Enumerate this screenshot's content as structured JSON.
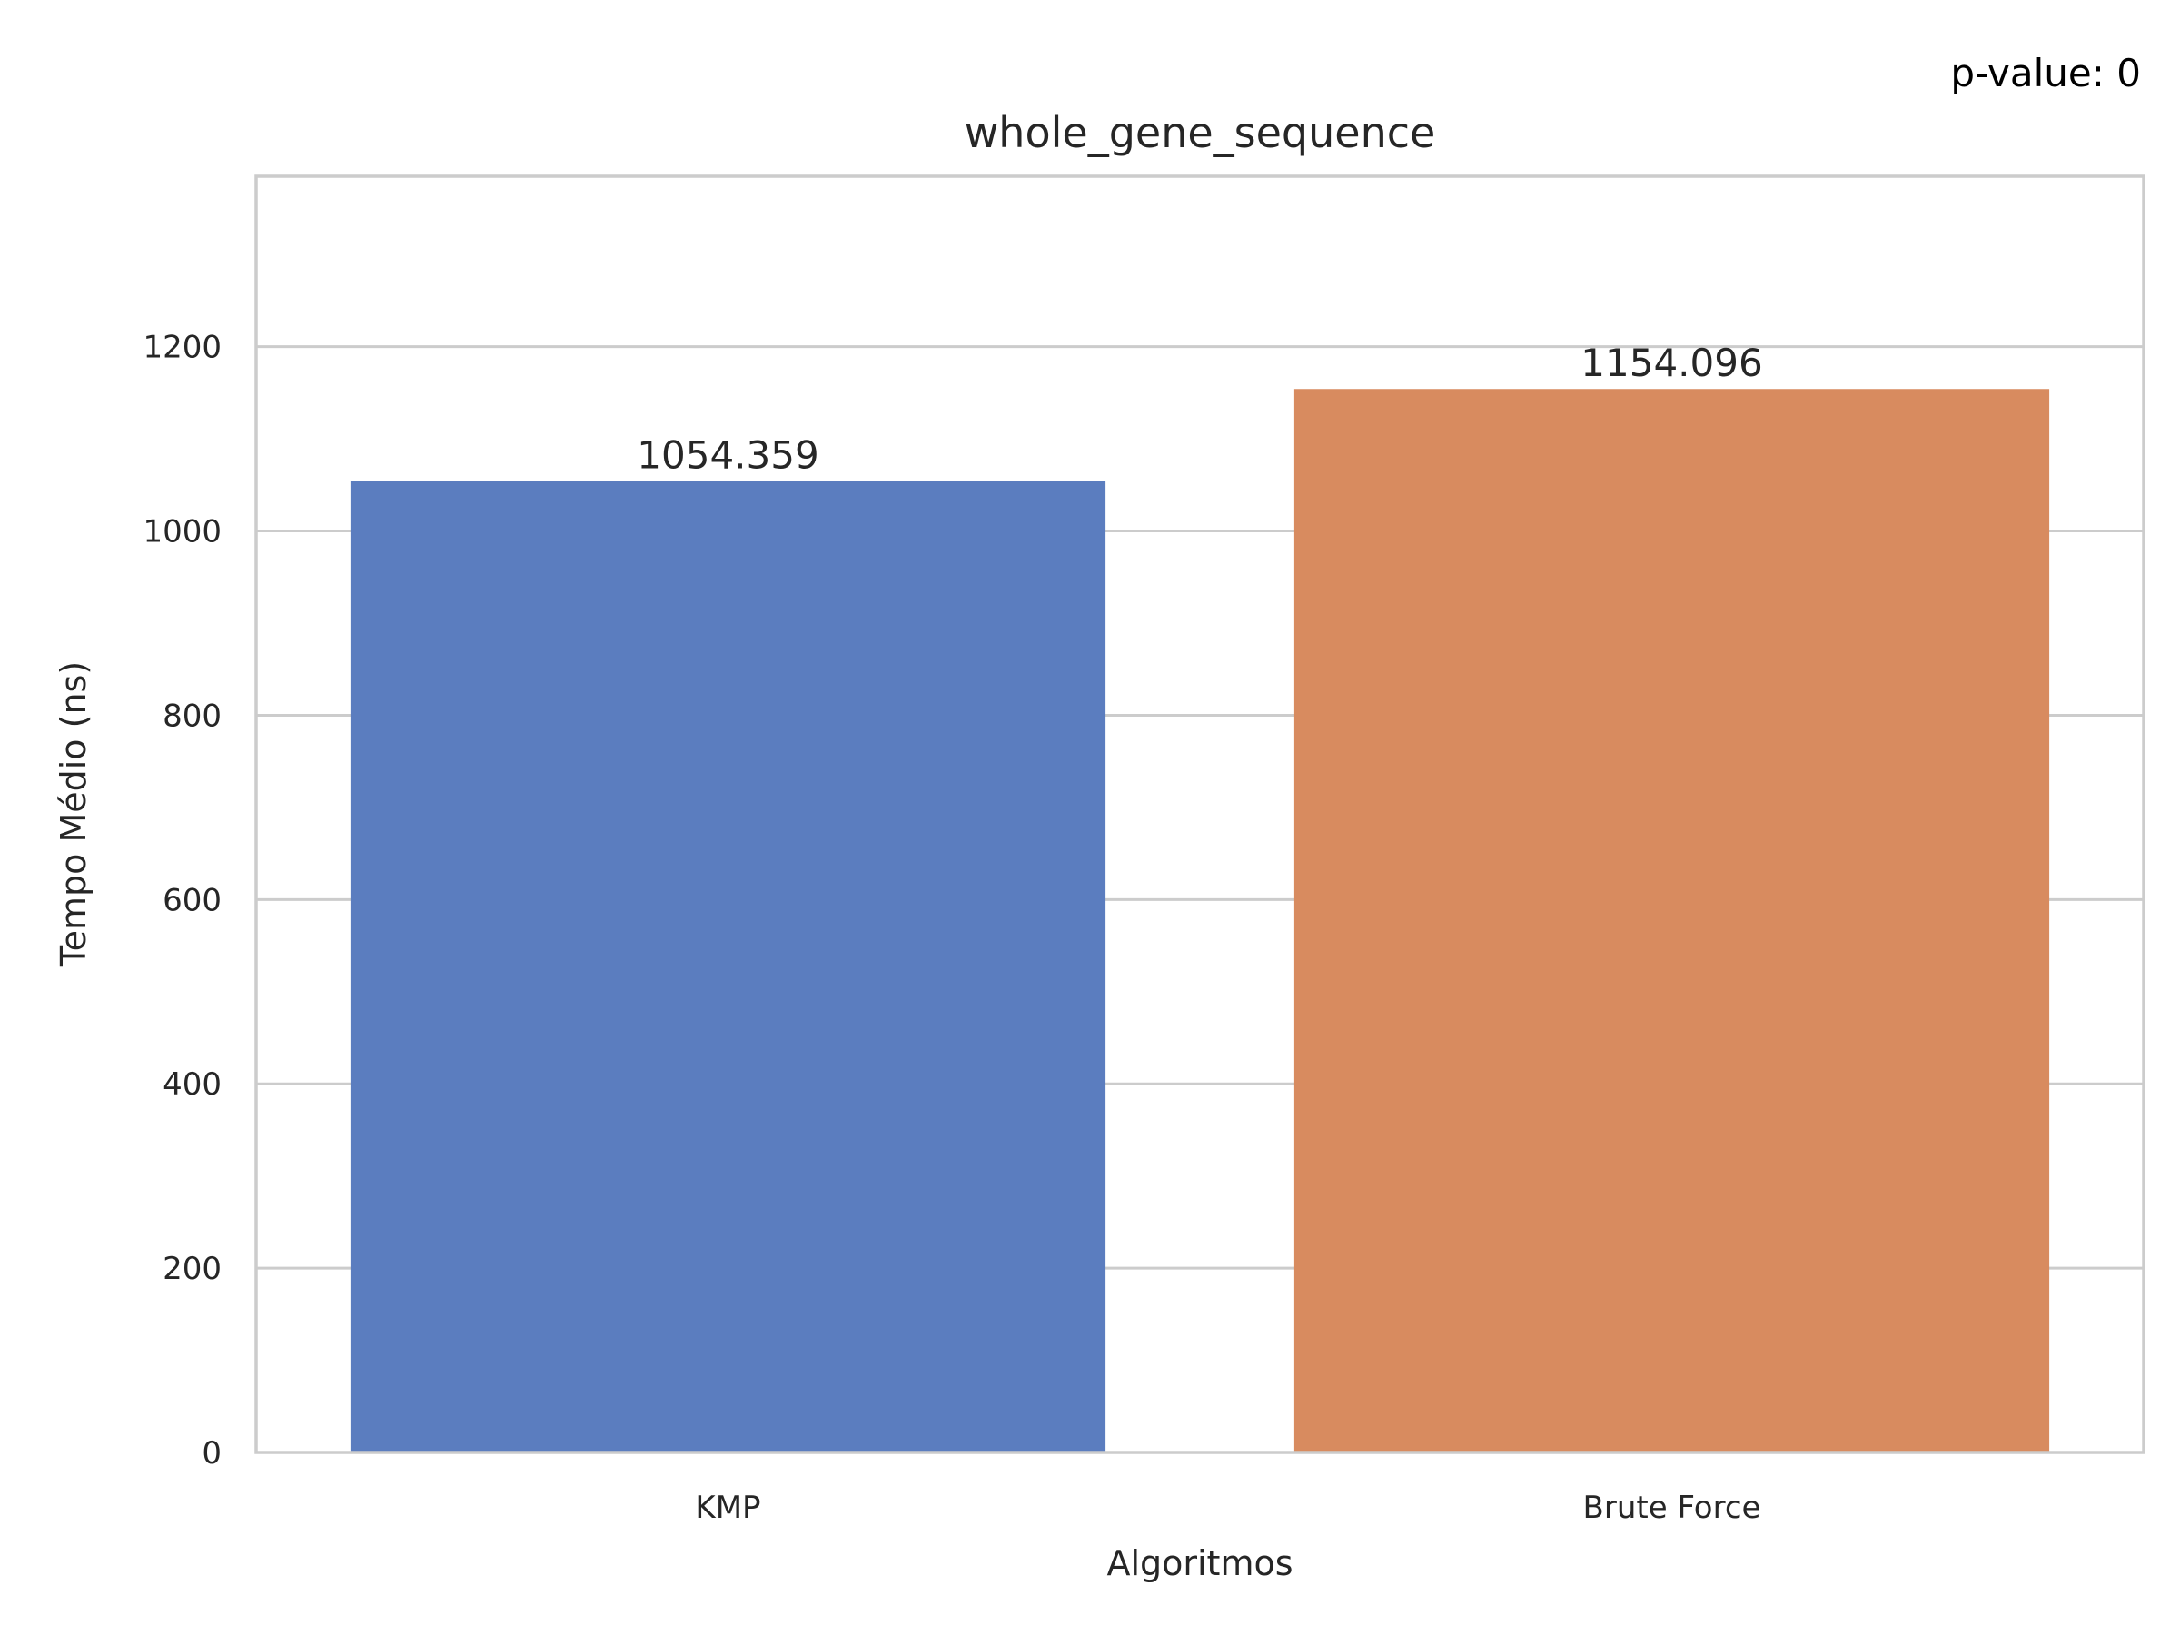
{
  "chart_data": {
    "type": "bar",
    "title": "whole_gene_sequence",
    "annotation": "p-value: 0",
    "xlabel": "Algoritmos",
    "ylabel": "Tempo Médio (ns)",
    "categories": [
      "KMP",
      "Brute Force"
    ],
    "values": [
      1054.359,
      1154.096
    ],
    "value_labels": [
      "1054.359",
      "1154.096"
    ],
    "bar_colors": [
      "#5b7dbf",
      "#d88b5f"
    ],
    "ylim": [
      0,
      1385
    ],
    "yticks": [
      0,
      200,
      400,
      600,
      800,
      1000,
      1200
    ],
    "grid": true,
    "legend": "none"
  }
}
